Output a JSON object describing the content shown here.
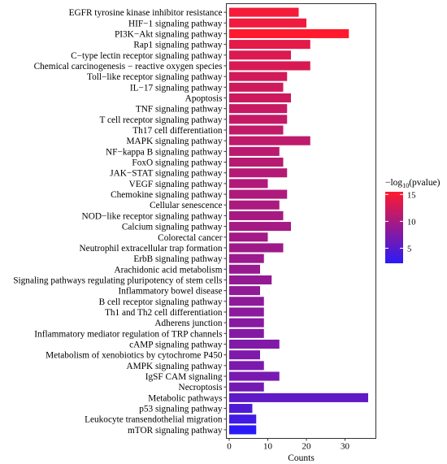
{
  "chart_data": {
    "type": "bar",
    "orientation": "horizontal",
    "xlabel": "Counts",
    "ylabel": "",
    "xlim": [
      0,
      37.5
    ],
    "xticks": [
      0,
      10,
      20,
      30
    ],
    "grid": false,
    "legend_position": "right",
    "colorbar": {
      "title_main": "−log",
      "title_sub": "10",
      "title_tail": "(pvalue)",
      "range": [
        2.2,
        15.5
      ],
      "ticks": [
        5,
        10,
        15
      ],
      "color_low": "#2b1af8",
      "color_high": "#ff1a2e"
    },
    "categories": [
      "EGFR tyrosine kinase inhibitor resistance",
      "HIF−1 signaling pathway",
      "PI3K−Akt signaling pathway",
      "Rap1 signaling pathway",
      "C−type lectin receptor signaling pathway",
      "Chemical carcinogenesis − reactive oxygen species",
      "Toll−like receptor signaling pathway",
      "IL−17 signaling pathway",
      "Apoptosis",
      "TNF signaling pathway",
      "T cell receptor signaling pathway",
      "Th17 cell differentiation",
      "MAPK signaling pathway",
      "NF−kappa B signaling pathway",
      "FoxO signaling pathway",
      "JAK−STAT signaling pathway",
      "VEGF signaling pathway",
      "Chemokine signaling pathway",
      "Cellular senescence",
      "NOD−like receptor signaling pathway",
      "Calcium signaling pathway",
      "Colorectal cancer",
      "Neutrophil extracellular trap formation",
      "ErbB signaling pathway",
      "Arachidonic acid metabolism",
      "Signaling pathways regulating pluripotency of stem cells",
      "Inflammatory bowel disease",
      "B cell receptor signaling pathway",
      "Th1 and Th2 cell differentiation",
      "Adherens junction",
      "Inflammatory mediator regulation of TRP channels",
      "cAMP signaling pathway",
      "Metabolism of xenobiotics by cytochrome P450",
      "AMPK signaling pathway",
      "IgSF CAM signaling",
      "Necroptosis",
      "Metabolic pathways",
      "p53 signaling pathway",
      "Leukocyte transendothelial migration",
      "mTOR signaling pathway"
    ],
    "values": [
      18,
      20,
      31,
      21,
      16,
      21,
      15,
      14,
      16,
      15,
      15,
      14,
      21,
      13,
      14,
      15,
      10,
      15,
      13,
      14,
      16,
      10,
      14,
      9,
      8,
      11,
      8,
      9,
      9,
      9,
      9,
      13,
      8,
      9,
      13,
      9,
      36,
      6,
      7,
      7
    ],
    "neg_log10_pvalue": [
      14.8,
      14.5,
      15.5,
      13.8,
      13.2,
      13.0,
      12.6,
      12.4,
      12.3,
      12.0,
      11.8,
      11.6,
      11.5,
      11.2,
      11.0,
      10.8,
      10.6,
      10.4,
      10.2,
      10.0,
      9.9,
      9.7,
      9.5,
      9.2,
      9.0,
      8.8,
      8.6,
      8.4,
      8.2,
      8.0,
      7.8,
      7.6,
      7.4,
      7.2,
      7.0,
      6.8,
      5.5,
      4.5,
      3.6,
      2.2
    ]
  }
}
